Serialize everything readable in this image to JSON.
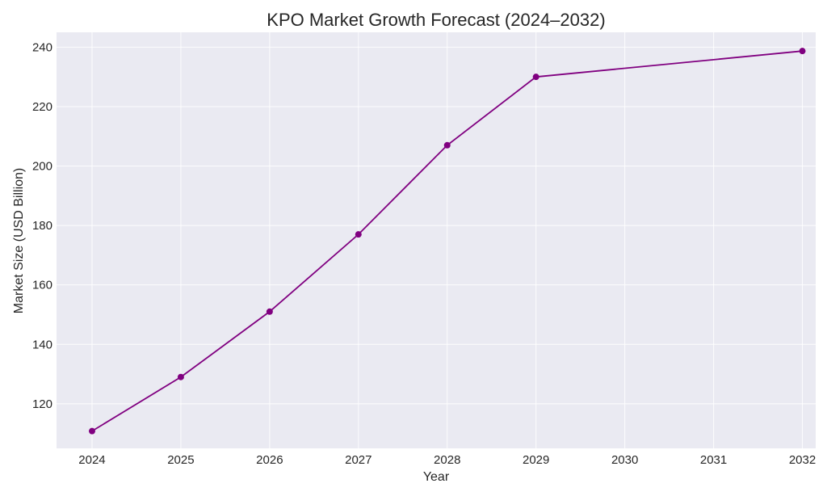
{
  "chart_data": {
    "type": "line",
    "title": "KPO Market Growth Forecast (2024–2032)",
    "xlabel": "Year",
    "ylabel": "Market Size (USD Billion)",
    "x": [
      2024,
      2025,
      2026,
      2027,
      2028,
      2029,
      2032
    ],
    "x_ticks": [
      "2024",
      "2025",
      "2026",
      "2027",
      "2028",
      "2029",
      "2030",
      "2031",
      "2032"
    ],
    "y_ticks": [
      "120",
      "140",
      "160",
      "180",
      "200",
      "220",
      "240"
    ],
    "series": [
      {
        "values": [
          110.8,
          129,
          151,
          177,
          207,
          230,
          238.7
        ]
      }
    ],
    "xlim": [
      2023.6,
      2032.15
    ],
    "ylim": [
      105,
      245
    ],
    "grid": true,
    "colors": {
      "line": "#800080",
      "plot_bg": "#eaeaf2",
      "grid": "#ffffff"
    }
  }
}
